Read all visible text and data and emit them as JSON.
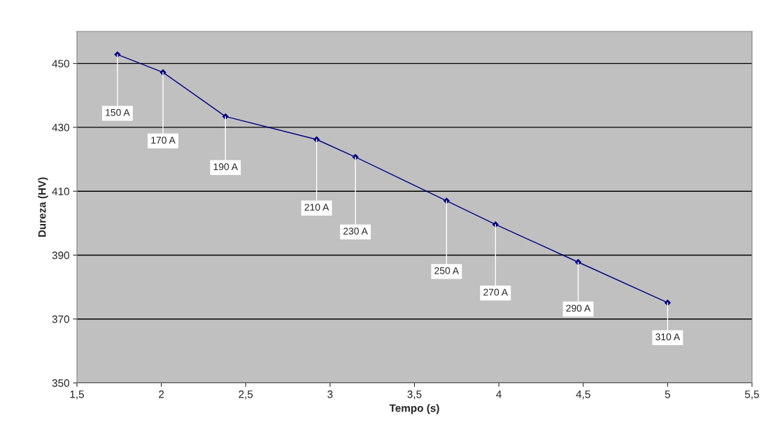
{
  "chart_data": {
    "type": "line",
    "xlabel": "Tempo (s)",
    "ylabel": "Dureza (HV)",
    "x": [
      1.74,
      2.01,
      2.38,
      2.92,
      3.15,
      3.69,
      3.98,
      4.47,
      5.0
    ],
    "series": [
      {
        "color": "#000080",
        "values": [
          452.8,
          447.2,
          433.4,
          426.2,
          420.7,
          407.0,
          399.6,
          387.8,
          375.1
        ]
      }
    ],
    "marker": "diamond",
    "line_style": "solid",
    "grid": "y",
    "legend": false,
    "xlim": [
      1.5,
      5.5
    ],
    "xticks": [
      {
        "value": 1.5,
        "label": "1,5"
      },
      2,
      {
        "value": 2.5,
        "label": "2,5"
      },
      3,
      {
        "value": 3.5,
        "label": "3,5"
      },
      4,
      {
        "value": 4.5,
        "label": "4,5"
      },
      5,
      {
        "value": 5.5,
        "label": "5,5"
      }
    ],
    "ylim": [
      350,
      460
    ],
    "yticks": [
      350,
      370,
      390,
      410,
      430,
      450
    ],
    "annotations": [
      {
        "text": "150 A",
        "x": 1.74,
        "y": 452.8
      },
      {
        "text": "170 A",
        "x": 2.01,
        "y": 447.2
      },
      {
        "text": "190 A",
        "x": 2.38,
        "y": 433.4
      },
      {
        "text": "210 A",
        "x": 2.92,
        "y": 426.2
      },
      {
        "text": "230 A",
        "x": 3.15,
        "y": 420.7
      },
      {
        "text": "250 A",
        "x": 3.69,
        "y": 407.0
      },
      {
        "text": "270 A",
        "x": 3.98,
        "y": 399.6
      },
      {
        "text": "290 A",
        "x": 4.47,
        "y": 387.8
      },
      {
        "text": "310 A",
        "x": 5.0,
        "y": 375.1
      }
    ]
  }
}
